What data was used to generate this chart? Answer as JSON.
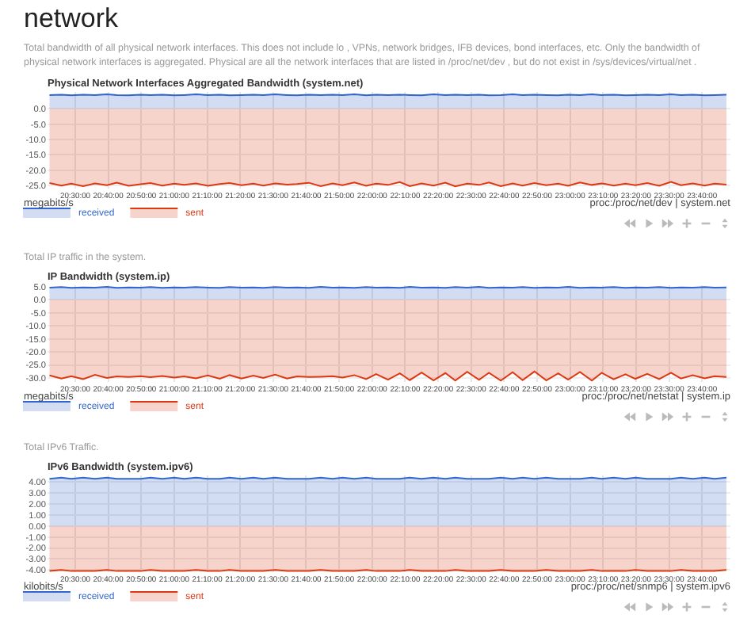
{
  "chart_data": [
    {
      "type": "area",
      "title": "Physical Network Interfaces Aggregated Bandwidth (system.net)",
      "subtitle": "Total bandwidth of all physical network interfaces. This does not include lo , VPNs, network bridges, IFB devices, bond interfaces, etc. Only the bandwidth of physical network interfaces is aggregated. Physical are all the network interfaces that are listed in /proc/net/dev , but do not exist in /sys/devices/virtual/net .",
      "ylabel": "megabits/s",
      "annotations": [
        "network",
        "proc:/proc/net/dev | system.net"
      ],
      "x": [
        20.37,
        20.43,
        20.48,
        20.54,
        20.6,
        20.66,
        20.71,
        20.77,
        20.83,
        20.88,
        20.94,
        21.0,
        21.05,
        21.11,
        21.17,
        21.23,
        21.28,
        21.34,
        21.4,
        21.45,
        21.51,
        21.57,
        21.62,
        21.68,
        21.74,
        21.8,
        21.85,
        21.91,
        21.97,
        22.02,
        22.08,
        22.14,
        22.19,
        22.25,
        22.31,
        22.37,
        22.42,
        22.48,
        22.54,
        22.59,
        22.65,
        22.71,
        22.76,
        22.82,
        22.88,
        22.94,
        22.99,
        23.05,
        23.11,
        23.16,
        23.22,
        23.28,
        23.33,
        23.39,
        23.45,
        23.51,
        23.56,
        23.62,
        23.68,
        23.73,
        23.79
      ],
      "series": [
        {
          "name": "received",
          "color": "#3366cc",
          "values": [
            4.5,
            4.6,
            4.4,
            4.6,
            4.5,
            4.7,
            4.5,
            4.4,
            4.6,
            4.5,
            4.6,
            4.4,
            4.5,
            4.7,
            4.5,
            4.6,
            4.4,
            4.5,
            4.6,
            4.5,
            4.7,
            4.5,
            4.4,
            4.6,
            4.5,
            4.6,
            4.5,
            4.7,
            4.4,
            4.6,
            4.5,
            4.6,
            4.5,
            4.4,
            4.7,
            4.5,
            4.6,
            4.5,
            4.6,
            4.4,
            4.5,
            4.7,
            4.5,
            4.6,
            4.5,
            4.4,
            4.6,
            4.5,
            4.7,
            4.5,
            4.6,
            4.4,
            4.5,
            4.6,
            4.5,
            4.7,
            4.5,
            4.6,
            4.4,
            4.5,
            4.6
          ]
        },
        {
          "name": "sent",
          "color": "#dc3912",
          "values": [
            -24.2,
            -25.0,
            -24.4,
            -25.2,
            -24.3,
            -24.9,
            -24.1,
            -25.1,
            -24.6,
            -24.2,
            -25.0,
            -24.4,
            -24.8,
            -24.3,
            -25.1,
            -24.5,
            -24.2,
            -24.9,
            -24.4,
            -25.0,
            -24.3,
            -24.7,
            -24.5,
            -24.1,
            -25.2,
            -24.3,
            -24.9,
            -24.0,
            -25.1,
            -24.4,
            -24.8,
            -23.9,
            -25.2,
            -24.3,
            -25.0,
            -24.1,
            -25.3,
            -24.4,
            -24.8,
            -24.0,
            -25.2,
            -24.3,
            -25.0,
            -24.2,
            -24.9,
            -24.4,
            -25.1,
            -24.0,
            -24.8,
            -24.3,
            -25.0,
            -24.4,
            -24.9,
            -24.2,
            -25.1,
            -23.8,
            -24.9,
            -24.3,
            -25.0,
            -24.4,
            -24.7
          ]
        }
      ],
      "xlim": [
        20.36,
        23.81
      ],
      "ylim": [
        -26,
        5.5
      ],
      "xticks": [
        {
          "value": 20.5,
          "label": "20:30:00"
        },
        {
          "value": 20.6667,
          "label": "20:40:00"
        },
        {
          "value": 20.8333,
          "label": "20:50:00"
        },
        {
          "value": 21,
          "label": "21:00:00"
        },
        {
          "value": 21.1667,
          "label": "21:10:00"
        },
        {
          "value": 21.3333,
          "label": "21:20:00"
        },
        {
          "value": 21.5,
          "label": "21:30:00"
        },
        {
          "value": 21.6667,
          "label": "21:40:00"
        },
        {
          "value": 21.8333,
          "label": "21:50:00"
        },
        {
          "value": 22,
          "label": "22:00:00"
        },
        {
          "value": 22.1667,
          "label": "22:10:00"
        },
        {
          "value": 22.3333,
          "label": "22:20:00"
        },
        {
          "value": 22.5,
          "label": "22:30:00"
        },
        {
          "value": 22.6667,
          "label": "22:40:00"
        },
        {
          "value": 22.8333,
          "label": "22:50:00"
        },
        {
          "value": 23,
          "label": "23:00:00"
        },
        {
          "value": 23.1667,
          "label": "23:10:00"
        },
        {
          "value": 23.3333,
          "label": "23:20:00"
        },
        {
          "value": 23.5,
          "label": "23:30:00"
        },
        {
          "value": 23.6667,
          "label": "23:40:00"
        }
      ],
      "yticks": [
        {
          "value": 0,
          "label": "0.0"
        },
        {
          "value": -5,
          "label": "-5.0"
        },
        {
          "value": -10,
          "label": "-10.0"
        },
        {
          "value": -15,
          "label": "-15.0"
        },
        {
          "value": -20,
          "label": "-20.0"
        },
        {
          "value": -25,
          "label": "-25.0"
        }
      ],
      "grid": true,
      "legend": "bottom left"
    },
    {
      "type": "area",
      "title": "IP Bandwidth (system.ip)",
      "subtitle": "Total IP traffic in the system.",
      "ylabel": "megabits/s",
      "annotations": [
        "proc:/proc/net/netstat | system.ip"
      ],
      "x": [
        20.37,
        20.43,
        20.48,
        20.54,
        20.6,
        20.66,
        20.71,
        20.77,
        20.83,
        20.88,
        20.94,
        21.0,
        21.05,
        21.11,
        21.17,
        21.23,
        21.28,
        21.34,
        21.4,
        21.45,
        21.51,
        21.57,
        21.62,
        21.68,
        21.74,
        21.8,
        21.85,
        21.91,
        21.97,
        22.02,
        22.08,
        22.14,
        22.19,
        22.25,
        22.31,
        22.37,
        22.42,
        22.48,
        22.54,
        22.59,
        22.65,
        22.71,
        22.76,
        22.82,
        22.88,
        22.94,
        22.99,
        23.05,
        23.11,
        23.16,
        23.22,
        23.28,
        23.33,
        23.39,
        23.45,
        23.51,
        23.56,
        23.62,
        23.68,
        23.73,
        23.79
      ],
      "series": [
        {
          "name": "received",
          "color": "#3366cc",
          "values": [
            4.6,
            4.8,
            4.5,
            4.7,
            4.6,
            4.9,
            4.5,
            4.7,
            4.6,
            4.8,
            4.5,
            4.7,
            4.6,
            4.8,
            4.6,
            4.5,
            4.8,
            4.6,
            4.7,
            4.5,
            4.8,
            4.6,
            4.7,
            4.5,
            4.9,
            4.6,
            4.7,
            4.5,
            4.8,
            4.6,
            4.7,
            4.5,
            4.9,
            4.6,
            4.7,
            4.5,
            4.8,
            4.6,
            4.9,
            4.5,
            4.7,
            4.6,
            4.8,
            4.5,
            4.7,
            4.6,
            4.9,
            4.5,
            4.7,
            4.6,
            4.8,
            4.5,
            4.7,
            4.6,
            4.8,
            4.5,
            4.7,
            4.6,
            4.8,
            4.6,
            4.7
          ]
        },
        {
          "name": "sent",
          "color": "#dc3912",
          "values": [
            -29.0,
            -30.2,
            -29.3,
            -30.4,
            -28.8,
            -30.0,
            -29.4,
            -29.6,
            -29.3,
            -29.7,
            -29.2,
            -29.8,
            -29.4,
            -30.1,
            -29.0,
            -30.3,
            -28.9,
            -30.2,
            -29.1,
            -30.0,
            -28.7,
            -30.2,
            -29.4,
            -29.6,
            -29.5,
            -29.3,
            -29.8,
            -28.9,
            -30.4,
            -28.5,
            -30.6,
            -28.2,
            -30.8,
            -27.9,
            -30.9,
            -28.1,
            -31.0,
            -27.6,
            -30.7,
            -28.0,
            -31.0,
            -27.8,
            -30.8,
            -27.5,
            -30.9,
            -28.2,
            -30.6,
            -27.7,
            -31.0,
            -28.0,
            -30.5,
            -28.6,
            -30.3,
            -28.4,
            -30.4,
            -28.0,
            -30.2,
            -28.9,
            -30.1,
            -29.3,
            -29.6
          ]
        }
      ],
      "xlim": [
        20.36,
        23.81
      ],
      "ylim": [
        -31.5,
        5.5
      ],
      "xticks": [
        {
          "value": 20.5,
          "label": "20:30:00"
        },
        {
          "value": 20.6667,
          "label": "20:40:00"
        },
        {
          "value": 20.8333,
          "label": "20:50:00"
        },
        {
          "value": 21,
          "label": "21:00:00"
        },
        {
          "value": 21.1667,
          "label": "21:10:00"
        },
        {
          "value": 21.3333,
          "label": "21:20:00"
        },
        {
          "value": 21.5,
          "label": "21:30:00"
        },
        {
          "value": 21.6667,
          "label": "21:40:00"
        },
        {
          "value": 21.8333,
          "label": "21:50:00"
        },
        {
          "value": 22,
          "label": "22:00:00"
        },
        {
          "value": 22.1667,
          "label": "22:10:00"
        },
        {
          "value": 22.3333,
          "label": "22:20:00"
        },
        {
          "value": 22.5,
          "label": "22:30:00"
        },
        {
          "value": 22.6667,
          "label": "22:40:00"
        },
        {
          "value": 22.8333,
          "label": "22:50:00"
        },
        {
          "value": 23,
          "label": "23:00:00"
        },
        {
          "value": 23.1667,
          "label": "23:10:00"
        },
        {
          "value": 23.3333,
          "label": "23:20:00"
        },
        {
          "value": 23.5,
          "label": "23:30:00"
        },
        {
          "value": 23.6667,
          "label": "23:40:00"
        }
      ],
      "yticks": [
        {
          "value": 5,
          "label": "5.0"
        },
        {
          "value": 0,
          "label": "0.0"
        },
        {
          "value": -5,
          "label": "-5.0"
        },
        {
          "value": -10,
          "label": "-10.0"
        },
        {
          "value": -15,
          "label": "-15.0"
        },
        {
          "value": -20,
          "label": "-20.0"
        },
        {
          "value": -25,
          "label": "-25.0"
        },
        {
          "value": -30,
          "label": "-30.0"
        }
      ],
      "grid": true,
      "legend": "bottom left"
    },
    {
      "type": "area",
      "title": "IPv6 Bandwidth (system.ipv6)",
      "subtitle": "Total IPv6 Traffic.",
      "ylabel": "kilobits/s",
      "annotations": [
        "proc:/proc/net/snmp6 | system.ipv6"
      ],
      "x": [
        20.37,
        20.43,
        20.48,
        20.54,
        20.6,
        20.66,
        20.71,
        20.77,
        20.83,
        20.88,
        20.94,
        21.0,
        21.05,
        21.11,
        21.17,
        21.23,
        21.28,
        21.34,
        21.4,
        21.45,
        21.51,
        21.57,
        21.62,
        21.68,
        21.74,
        21.8,
        21.85,
        21.91,
        21.97,
        22.02,
        22.08,
        22.14,
        22.19,
        22.25,
        22.31,
        22.37,
        22.42,
        22.48,
        22.54,
        22.59,
        22.65,
        22.71,
        22.76,
        22.82,
        22.88,
        22.94,
        22.99,
        23.05,
        23.11,
        23.16,
        23.22,
        23.28,
        23.33,
        23.39,
        23.45,
        23.51,
        23.56,
        23.62,
        23.68,
        23.73,
        23.79
      ],
      "series": [
        {
          "name": "received",
          "color": "#3366cc",
          "values": [
            4.3,
            4.4,
            4.3,
            4.4,
            4.3,
            4.4,
            4.3,
            4.3,
            4.3,
            4.4,
            4.3,
            4.4,
            4.3,
            4.4,
            4.3,
            4.3,
            4.4,
            4.3,
            4.4,
            4.3,
            4.4,
            4.3,
            4.3,
            4.3,
            4.4,
            4.3,
            4.4,
            4.3,
            4.4,
            4.3,
            4.3,
            4.3,
            4.4,
            4.3,
            4.4,
            4.3,
            4.4,
            4.3,
            4.3,
            4.3,
            4.4,
            4.3,
            4.4,
            4.3,
            4.4,
            4.3,
            4.3,
            4.3,
            4.4,
            4.3,
            4.4,
            4.3,
            4.4,
            4.3,
            4.3,
            4.3,
            4.4,
            4.3,
            4.4,
            4.3,
            4.4
          ]
        },
        {
          "name": "sent",
          "color": "#dc3912",
          "values": [
            -4.1,
            -4.0,
            -4.1,
            -4.1,
            -4.1,
            -4.0,
            -4.1,
            -4.1,
            -4.1,
            -4.0,
            -4.1,
            -4.1,
            -4.1,
            -4.0,
            -4.1,
            -4.1,
            -4.0,
            -4.1,
            -4.1,
            -4.1,
            -4.0,
            -4.1,
            -4.1,
            -4.1,
            -4.0,
            -4.1,
            -4.1,
            -4.1,
            -4.0,
            -4.1,
            -4.1,
            -4.1,
            -4.0,
            -4.1,
            -4.1,
            -4.1,
            -4.0,
            -4.1,
            -4.1,
            -4.1,
            -4.0,
            -4.1,
            -4.1,
            -4.1,
            -4.0,
            -4.1,
            -4.1,
            -4.1,
            -4.0,
            -4.1,
            -4.1,
            -4.1,
            -4.0,
            -4.1,
            -4.1,
            -4.1,
            -4.0,
            -4.1,
            -4.1,
            -4.1,
            -4.0
          ]
        }
      ],
      "xlim": [
        20.36,
        23.81
      ],
      "ylim": [
        -4.2,
        4.6
      ],
      "xticks": [
        {
          "value": 20.5,
          "label": "20:30:00"
        },
        {
          "value": 20.6667,
          "label": "20:40:00"
        },
        {
          "value": 20.8333,
          "label": "20:50:00"
        },
        {
          "value": 21,
          "label": "21:00:00"
        },
        {
          "value": 21.1667,
          "label": "21:10:00"
        },
        {
          "value": 21.3333,
          "label": "21:20:00"
        },
        {
          "value": 21.5,
          "label": "21:30:00"
        },
        {
          "value": 21.6667,
          "label": "21:40:00"
        },
        {
          "value": 21.8333,
          "label": "21:50:00"
        },
        {
          "value": 22,
          "label": "22:00:00"
        },
        {
          "value": 22.1667,
          "label": "22:10:00"
        },
        {
          "value": 22.3333,
          "label": "22:20:00"
        },
        {
          "value": 22.5,
          "label": "22:30:00"
        },
        {
          "value": 22.6667,
          "label": "22:40:00"
        },
        {
          "value": 22.8333,
          "label": "22:50:00"
        },
        {
          "value": 23,
          "label": "23:00:00"
        },
        {
          "value": 23.1667,
          "label": "23:10:00"
        },
        {
          "value": 23.3333,
          "label": "23:20:00"
        },
        {
          "value": 23.5,
          "label": "23:30:00"
        },
        {
          "value": 23.6667,
          "label": "23:40:00"
        }
      ],
      "yticks": [
        {
          "value": 4,
          "label": "4.00"
        },
        {
          "value": 3,
          "label": "3.00"
        },
        {
          "value": 2,
          "label": "2.00"
        },
        {
          "value": 1,
          "label": "1.00"
        },
        {
          "value": 0,
          "label": "0.00"
        },
        {
          "value": -1,
          "label": "-1.00"
        },
        {
          "value": -2,
          "label": "-2.00"
        },
        {
          "value": -3,
          "label": "-3.00"
        },
        {
          "value": -4,
          "label": "-4.00"
        }
      ],
      "grid": true,
      "legend": "bottom left"
    }
  ]
}
